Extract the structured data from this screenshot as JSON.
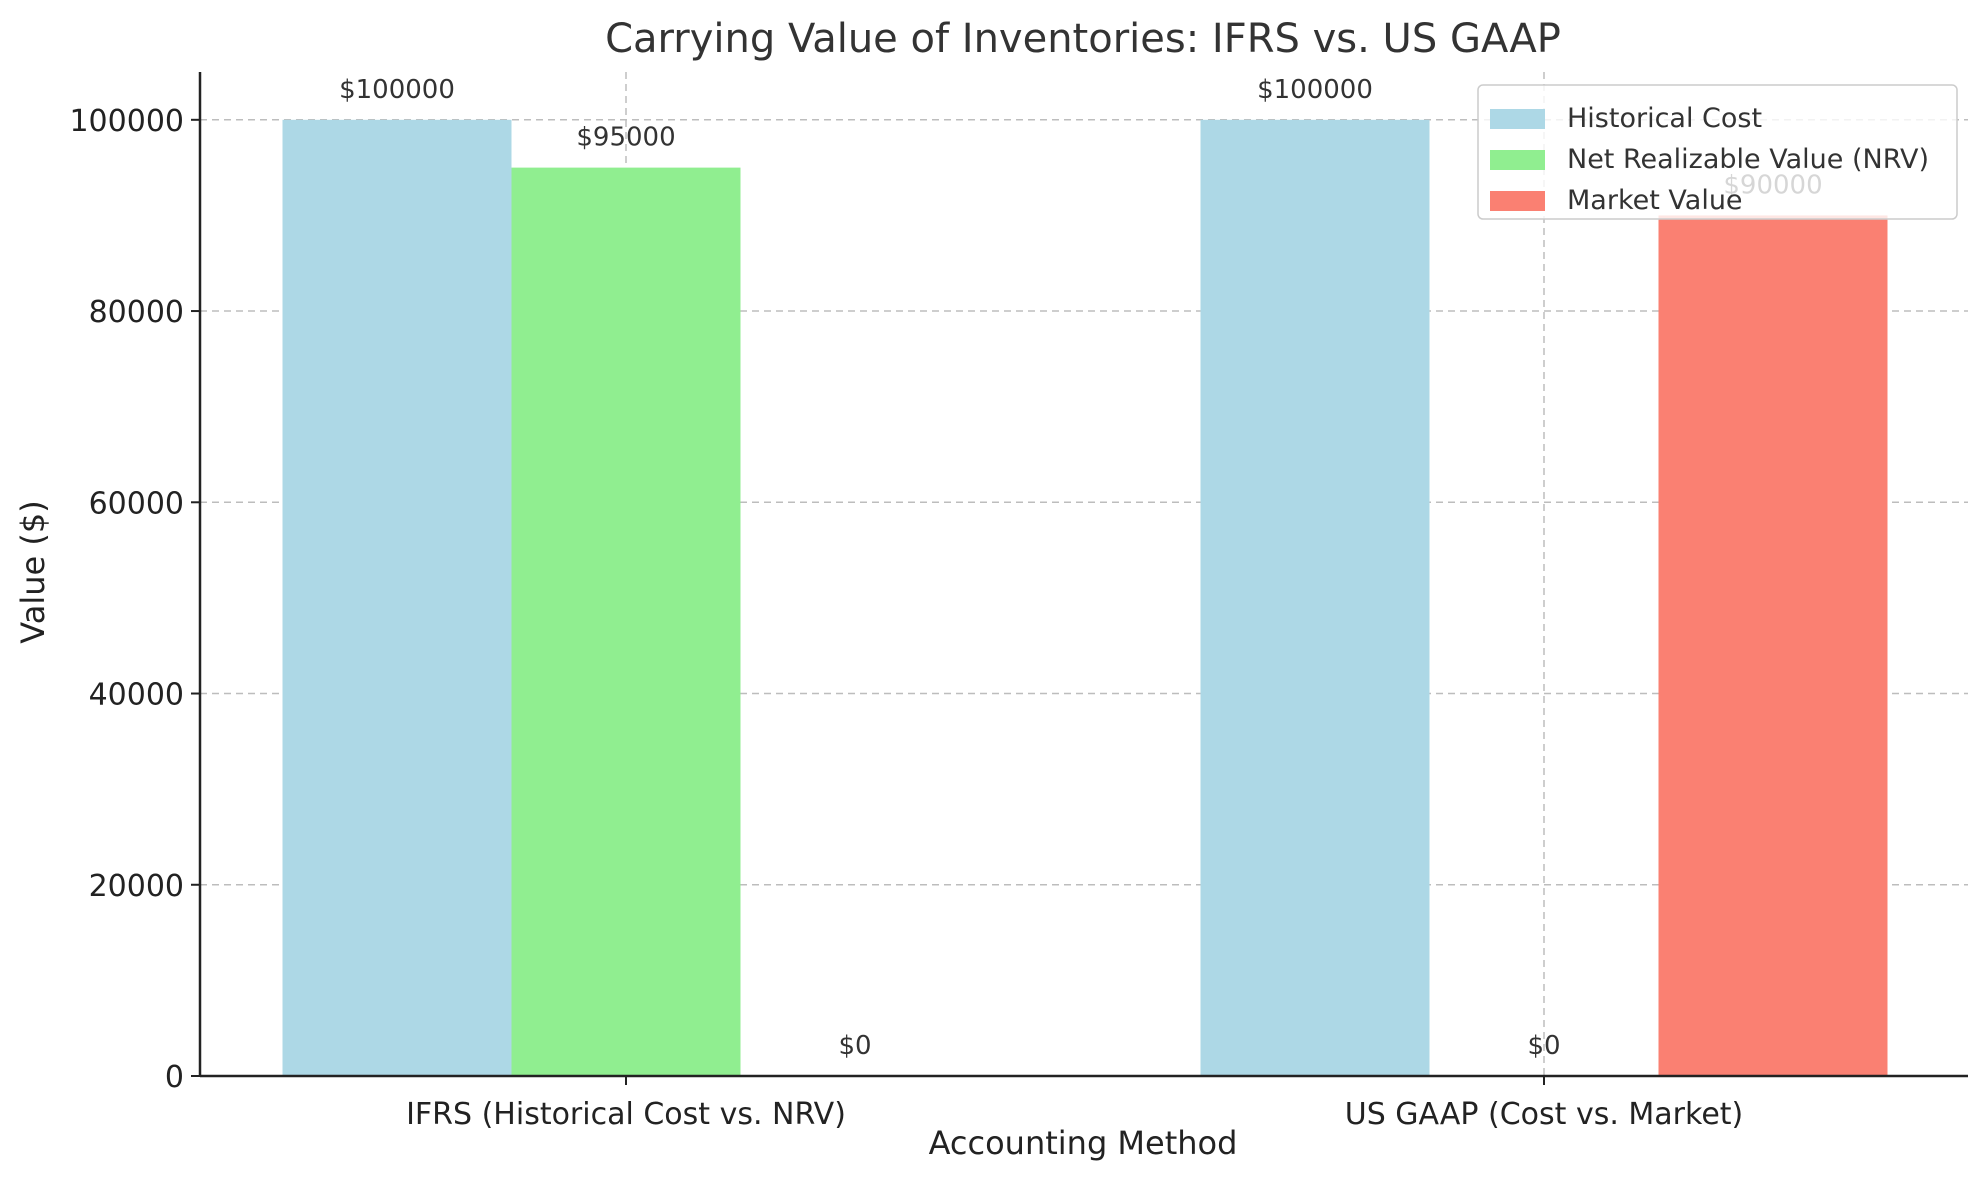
{
  "chart_data": {
    "type": "bar",
    "title": "Carrying Value of Inventories: IFRS vs. US GAAP",
    "xlabel": "Accounting Method",
    "ylabel": "Value ($)",
    "categories": [
      "IFRS (Historical Cost vs. NRV)",
      "US GAAP (Cost vs. Market)"
    ],
    "ylim": [
      0,
      105000
    ],
    "yticks": [
      0,
      20000,
      40000,
      60000,
      80000,
      100000
    ],
    "grid": true,
    "legend_position": "top-right",
    "series": [
      {
        "name": "Historical Cost",
        "color": "#add8e6",
        "values": [
          100000,
          100000
        ],
        "data_labels": [
          "$100000",
          "$100000"
        ]
      },
      {
        "name": "Net Realizable Value (NRV)",
        "color": "#90ee90",
        "values": [
          95000,
          0
        ],
        "data_labels": [
          "$95000",
          "$0"
        ]
      },
      {
        "name": "Market Value",
        "color": "#fa8072",
        "values": [
          0,
          90000
        ],
        "data_labels": [
          "$0",
          "$90000"
        ]
      }
    ]
  }
}
